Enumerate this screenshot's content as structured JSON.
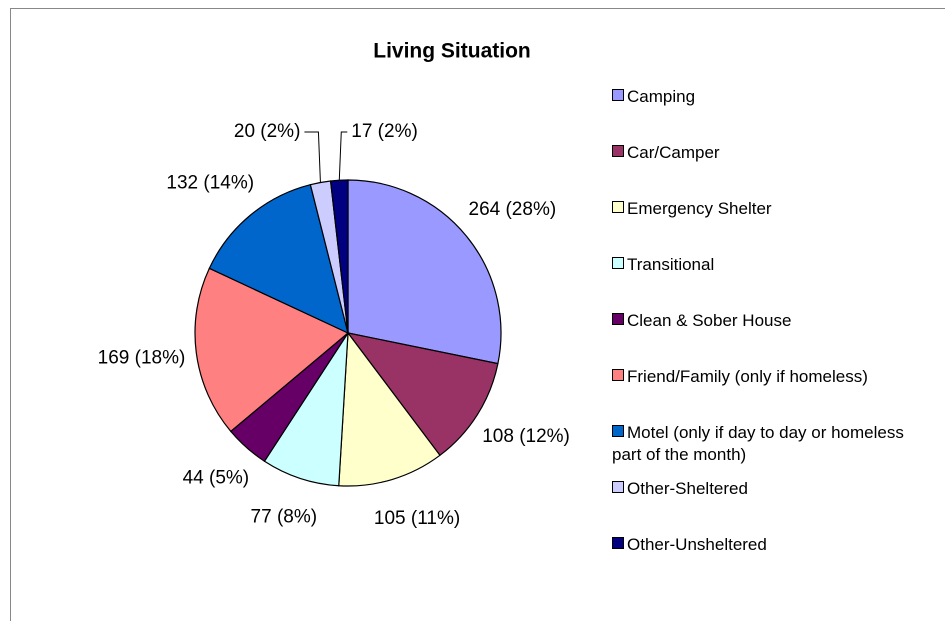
{
  "chart_data": {
    "type": "pie",
    "title": "Living Situation",
    "categories": [
      "Camping",
      "Car/Camper",
      "Emergency Shelter",
      "Transitional",
      "Clean & Sober House",
      "Friend/Family (only if homeless)",
      "Motel (only if day to day or homeless part of the month)",
      "Other-Sheltered",
      "Other-Unsheltered"
    ],
    "values": [
      264,
      108,
      105,
      77,
      44,
      169,
      132,
      20,
      17
    ],
    "value_labels": [
      "264 (28%)",
      "108 (12%)",
      "105 (11%)",
      "77 (8%)",
      "44 (5%)",
      "169 (18%)",
      "132 (14%)",
      "20 (2%)",
      "17 (2%)"
    ],
    "colors": [
      "#9999ff",
      "#993366",
      "#ffffcc",
      "#ccffff",
      "#660066",
      "#ff8080",
      "#0066cc",
      "#ccccff",
      "#000080"
    ],
    "legend": "right"
  }
}
